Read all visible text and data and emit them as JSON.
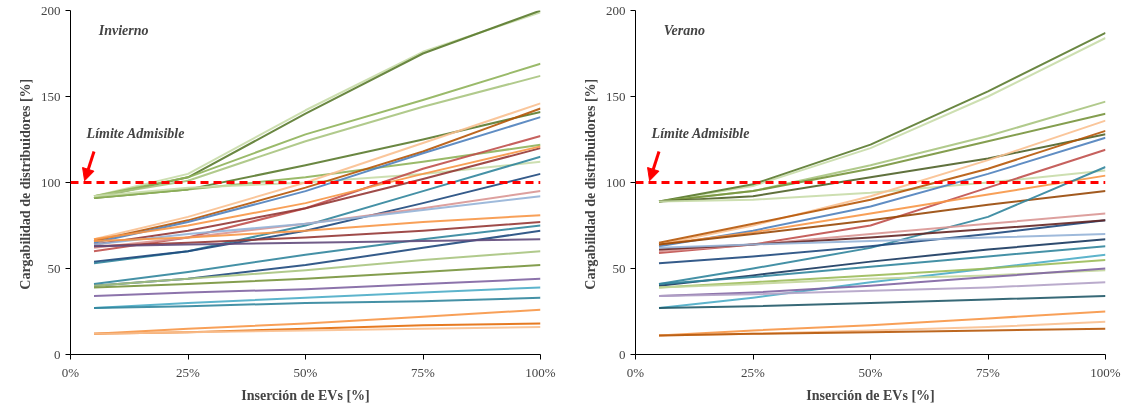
{
  "chart_data": [
    {
      "type": "line",
      "annotations": [
        "Invierno"
      ],
      "xlabel": "Inserción de EVs [%]",
      "ylabel": "Cargabilidad  de distribuidores [%]",
      "x": [
        5,
        25,
        50,
        75,
        100
      ],
      "xlim": [
        0,
        100
      ],
      "xticks": [
        {
          "value": 0,
          "label": "0%"
        },
        {
          "value": 25,
          "label": "25%"
        },
        {
          "value": 50,
          "label": "50%"
        },
        {
          "value": 75,
          "label": "75%"
        },
        {
          "value": 100,
          "label": "100%"
        }
      ],
      "ylim": [
        0,
        200
      ],
      "yticks": [
        0,
        50,
        100,
        150,
        200
      ],
      "ref_lines": [
        {
          "axis": "y",
          "value": 100,
          "label": "Límite Admisible",
          "color": "#ff0000",
          "line_style": "dashed"
        }
      ],
      "series": [
        {
          "color": "#c8dba8",
          "values": [
            92,
            105,
            142,
            176,
            199
          ]
        },
        {
          "color": "#5a7a2e",
          "values": [
            91,
            103,
            140,
            175,
            200
          ]
        },
        {
          "color": "#8fb35a",
          "values": [
            92,
            103,
            128,
            148,
            169
          ]
        },
        {
          "color": "#a9c47f",
          "values": [
            92,
            101,
            124,
            144,
            162
          ]
        },
        {
          "color": "#5a7a2e",
          "values": [
            91,
            96,
            110,
            125,
            141
          ]
        },
        {
          "color": "#8fb35a",
          "values": [
            91,
            96,
            103,
            112,
            122
          ]
        },
        {
          "color": "#c8dba8",
          "values": [
            92,
            97,
            100,
            105,
            112
          ]
        },
        {
          "color": "#fac090",
          "values": [
            67,
            80,
            100,
            123,
            146
          ]
        },
        {
          "color": "#b65708",
          "values": [
            66,
            78,
            97,
            118,
            143
          ]
        },
        {
          "color": "#4f81bd",
          "values": [
            65,
            77,
            95,
            117,
            138
          ]
        },
        {
          "color": "#c0504d",
          "values": [
            60,
            68,
            85,
            108,
            127
          ]
        },
        {
          "color": "#953735",
          "values": [
            64,
            72,
            85,
            102,
            120
          ]
        },
        {
          "color": "#f79646",
          "values": [
            67,
            75,
            88,
            105,
            121
          ]
        },
        {
          "color": "#31859c",
          "values": [
            53,
            60,
            75,
            95,
            115
          ]
        },
        {
          "color": "#1f497d",
          "values": [
            54,
            60,
            72,
            88,
            105
          ]
        },
        {
          "color": "#d99694",
          "values": [
            62,
            68,
            76,
            85,
            95
          ]
        },
        {
          "color": "#95b3d7",
          "values": [
            64,
            70,
            76,
            84,
            92
          ]
        },
        {
          "color": "#953735",
          "values": [
            63,
            65,
            68,
            72,
            77
          ]
        },
        {
          "color": "#f79646",
          "values": [
            66,
            68,
            72,
            77,
            81
          ]
        },
        {
          "color": "#31859c",
          "values": [
            41,
            48,
            58,
            67,
            75
          ]
        },
        {
          "color": "#1f497d",
          "values": [
            40,
            44,
            52,
            62,
            72
          ]
        },
        {
          "color": "#604a7b",
          "values": [
            63,
            64,
            65,
            66,
            67
          ]
        },
        {
          "color": "#a9c47f",
          "values": [
            40,
            44,
            49,
            55,
            60
          ]
        },
        {
          "color": "#77933c",
          "values": [
            39,
            41,
            44,
            48,
            52
          ]
        },
        {
          "color": "#8064a2",
          "values": [
            34,
            36,
            38,
            41,
            44
          ]
        },
        {
          "color": "#4bacc6",
          "values": [
            27,
            30,
            33,
            36,
            39
          ]
        },
        {
          "color": "#31859c",
          "values": [
            27,
            28,
            30,
            31,
            33
          ]
        },
        {
          "color": "#f79646",
          "values": [
            12,
            15,
            18,
            22,
            26
          ]
        },
        {
          "color": "#e36c09",
          "values": [
            12,
            13,
            15,
            17,
            18
          ]
        },
        {
          "color": "#fac090",
          "values": [
            12,
            13,
            14,
            15,
            16
          ]
        }
      ]
    },
    {
      "type": "line",
      "annotations": [
        "Verano"
      ],
      "xlabel": "Inserción de EVs [%]",
      "ylabel": "Cargabilidad  de distribuidores [%]",
      "x": [
        5,
        25,
        50,
        75,
        100
      ],
      "xlim": [
        0,
        100
      ],
      "xticks": [
        {
          "value": 0,
          "label": "0%"
        },
        {
          "value": 25,
          "label": "25%"
        },
        {
          "value": 50,
          "label": "50%"
        },
        {
          "value": 75,
          "label": "75%"
        },
        {
          "value": 100,
          "label": "100%"
        }
      ],
      "ylim": [
        0,
        200
      ],
      "yticks": [
        0,
        50,
        100,
        150,
        200
      ],
      "ref_lines": [
        {
          "axis": "y",
          "value": 100,
          "label": "Límite Admisible",
          "color": "#ff0000",
          "line_style": "dashed"
        }
      ],
      "series": [
        {
          "color": "#c8dba8",
          "values": [
            89,
            98,
            120,
            150,
            184
          ]
        },
        {
          "color": "#5a7a2e",
          "values": [
            89,
            99,
            122,
            153,
            187
          ]
        },
        {
          "color": "#a9c47f",
          "values": [
            89,
            95,
            110,
            127,
            147
          ]
        },
        {
          "color": "#77933c",
          "values": [
            89,
            95,
            108,
            124,
            140
          ]
        },
        {
          "color": "#4f6228",
          "values": [
            89,
            92,
            103,
            114,
            128
          ]
        },
        {
          "color": "#c8dba8",
          "values": [
            89,
            90,
            94,
            100,
            107
          ]
        },
        {
          "color": "#fac090",
          "values": [
            64,
            75,
            92,
            113,
            136
          ]
        },
        {
          "color": "#b65708",
          "values": [
            65,
            76,
            90,
            108,
            130
          ]
        },
        {
          "color": "#4f81bd",
          "values": [
            63,
            72,
            86,
            105,
            126
          ]
        },
        {
          "color": "#c0504d",
          "values": [
            59,
            64,
            75,
            97,
            119
          ]
        },
        {
          "color": "#f79646",
          "values": [
            64,
            71,
            82,
            93,
            104
          ]
        },
        {
          "color": "#984807",
          "values": [
            64,
            70,
            78,
            87,
            95
          ]
        },
        {
          "color": "#31859c",
          "values": [
            41,
            50,
            62,
            80,
            109
          ]
        },
        {
          "color": "#1f497d",
          "values": [
            53,
            57,
            63,
            70,
            78
          ]
        },
        {
          "color": "#d99694",
          "values": [
            60,
            64,
            70,
            76,
            82
          ]
        },
        {
          "color": "#632523",
          "values": [
            61,
            64,
            68,
            73,
            78
          ]
        },
        {
          "color": "#95b3d7",
          "values": [
            62,
            64,
            66,
            68,
            70
          ]
        },
        {
          "color": "#17375e",
          "values": [
            40,
            46,
            54,
            61,
            67
          ]
        },
        {
          "color": "#31859c",
          "values": [
            41,
            45,
            51,
            57,
            63
          ]
        },
        {
          "color": "#4bacc6",
          "values": [
            27,
            33,
            42,
            50,
            58
          ]
        },
        {
          "color": "#9bbb59",
          "values": [
            39,
            42,
            46,
            50,
            55
          ]
        },
        {
          "color": "#c3d69b",
          "values": [
            39,
            41,
            44,
            46,
            49
          ]
        },
        {
          "color": "#8064a2",
          "values": [
            34,
            36,
            40,
            45,
            50
          ]
        },
        {
          "color": "#b3a2c7",
          "values": [
            34,
            35,
            37,
            39,
            42
          ]
        },
        {
          "color": "#215968",
          "values": [
            27,
            28,
            30,
            32,
            34
          ]
        },
        {
          "color": "#f79646",
          "values": [
            11,
            14,
            17,
            21,
            25
          ]
        },
        {
          "color": "#fac090",
          "values": [
            11,
            12,
            14,
            16,
            19
          ]
        },
        {
          "color": "#b65708",
          "values": [
            11,
            12,
            13,
            14,
            15
          ]
        }
      ]
    }
  ]
}
